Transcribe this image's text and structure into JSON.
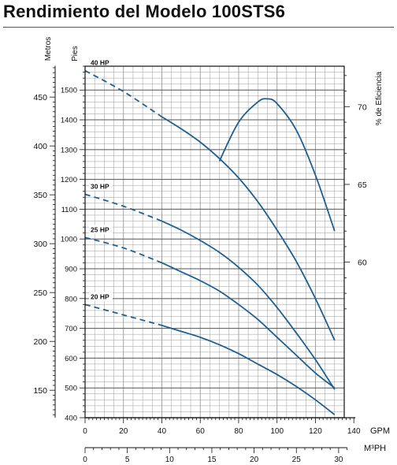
{
  "title": "Rendimiento del Modelo 100STS6",
  "chart_data": {
    "type": "line",
    "axes": {
      "gpm": {
        "label": "GPM",
        "range": [
          0,
          140
        ],
        "ticks": [
          0,
          20,
          40,
          60,
          80,
          100,
          120,
          140
        ]
      },
      "m3ph": {
        "label": "M³PH",
        "range": [
          0,
          31.8
        ],
        "ticks": [
          0,
          5,
          10,
          15,
          20,
          25,
          30
        ]
      },
      "feet": {
        "label": "Pies",
        "range": [
          400,
          1580
        ],
        "ticks": [
          400,
          500,
          600,
          700,
          800,
          900,
          1000,
          1100,
          1200,
          1300,
          1400,
          1500
        ]
      },
      "meters": {
        "label": "Metros",
        "ticks": [
          150,
          200,
          250,
          300,
          350,
          400,
          450
        ]
      },
      "efficiency": {
        "label": "% de Eficiencia",
        "ticks": [
          60,
          65,
          70
        ]
      }
    },
    "grid": true,
    "series": [
      {
        "name": "40 HP",
        "dashed": {
          "x": [
            0,
            20,
            40
          ],
          "y": [
            1565,
            1495,
            1410
          ]
        },
        "solid": {
          "x": [
            40,
            50,
            60,
            70,
            80,
            90,
            100,
            110,
            120,
            130
          ],
          "y": [
            1410,
            1370,
            1325,
            1270,
            1205,
            1125,
            1030,
            925,
            800,
            660
          ]
        }
      },
      {
        "name": "30 HP",
        "dashed": {
          "x": [
            0,
            20,
            40
          ],
          "y": [
            1150,
            1110,
            1060
          ]
        },
        "solid": {
          "x": [
            40,
            50,
            60,
            70,
            80,
            90,
            100,
            110,
            120,
            130
          ],
          "y": [
            1060,
            1030,
            995,
            955,
            905,
            845,
            770,
            685,
            595,
            495
          ]
        }
      },
      {
        "name": "25 HP",
        "dashed": {
          "x": [
            0,
            20,
            40
          ],
          "y": [
            1005,
            970,
            920
          ]
        },
        "solid": {
          "x": [
            40,
            50,
            60,
            70,
            80,
            90,
            100,
            110,
            120,
            130
          ],
          "y": [
            920,
            890,
            860,
            825,
            780,
            730,
            670,
            610,
            550,
            500
          ]
        }
      },
      {
        "name": "20 HP",
        "dashed": {
          "x": [
            0,
            20,
            40
          ],
          "y": [
            780,
            745,
            710
          ]
        },
        "solid": {
          "x": [
            40,
            50,
            60,
            70,
            80,
            90,
            100,
            110,
            120,
            130
          ],
          "y": [
            710,
            690,
            670,
            645,
            615,
            580,
            545,
            505,
            460,
            410
          ]
        }
      }
    ],
    "efficiency_curve": {
      "x": [
        70,
        80,
        90,
        95,
        100,
        110,
        120,
        130
      ],
      "y": [
        66.5,
        69.0,
        70.3,
        70.5,
        70.2,
        68.5,
        65.6,
        62.0
      ]
    },
    "colors": {
      "curve": "#1e6091",
      "grid": "#9a9a9a",
      "axis": "#111111"
    }
  }
}
